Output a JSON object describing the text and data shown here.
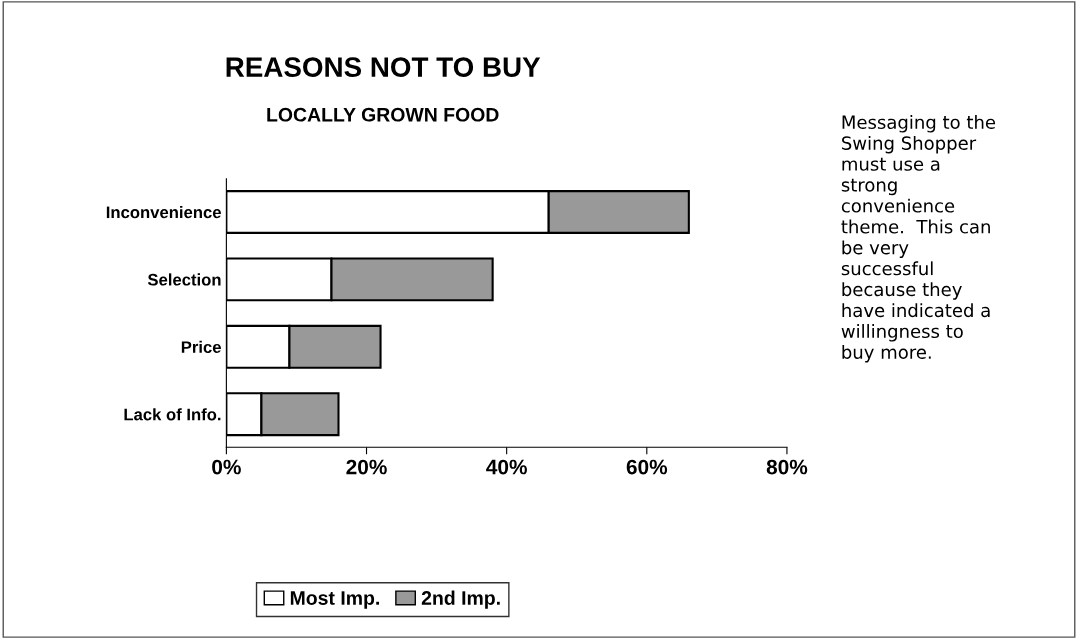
{
  "chart_data": {
    "type": "bar",
    "orientation": "horizontal",
    "stacked": true,
    "title": "REASONS NOT TO BUY",
    "subtitle": "LOCALLY GROWN FOOD",
    "categories": [
      "Inconvenience",
      "Selection",
      "Price",
      "Lack of Info."
    ],
    "series": [
      {
        "name": "Most Imp.",
        "color": "#ffffff",
        "values": [
          46,
          15,
          9,
          5
        ]
      },
      {
        "name": "2nd Imp.",
        "color": "#999999",
        "values": [
          20,
          23,
          13,
          11
        ]
      }
    ],
    "xlim": [
      0,
      80
    ],
    "xticks": [
      {
        "value": 0,
        "label": "0%"
      },
      {
        "value": 20,
        "label": "20%"
      },
      {
        "value": 40,
        "label": "40%"
      },
      {
        "value": 60,
        "label": "60%"
      },
      {
        "value": 80,
        "label": "80%"
      }
    ],
    "grid": false,
    "legend": "bottom",
    "annotations": [
      "Messaging to the Swing Shopper must use a strong convenience theme.  This can be very successful because they have indicated a willingness to buy more."
    ]
  }
}
